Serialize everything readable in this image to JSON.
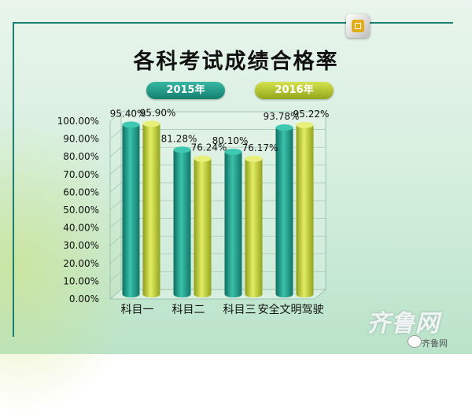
{
  "chart_data": {
    "type": "bar",
    "title": "各科考试成绩合格率",
    "categories": [
      "科目一",
      "科目二",
      "科目三",
      "安全文明驾驶"
    ],
    "series": [
      {
        "name": "2015年",
        "values": [
          95.4,
          81.28,
          80.1,
          93.78
        ],
        "labels": [
          "95.40%",
          "81.28%",
          "80.10%",
          "93.78%"
        ]
      },
      {
        "name": "2016年",
        "values": [
          95.9,
          76.24,
          76.17,
          95.22
        ],
        "labels": [
          "95.90%",
          "76.24%",
          "76.17%",
          "95.22%"
        ]
      }
    ],
    "yticks": [
      "0.00%",
      "10.00%",
      "20.00%",
      "30.00%",
      "40.00%",
      "50.00%",
      "60.00%",
      "70.00%",
      "80.00%",
      "90.00%",
      "100.00%"
    ],
    "ylim": [
      0,
      100
    ],
    "grid": true,
    "legend": "top"
  },
  "colors": {
    "series_2015": "#1f9a87",
    "series_2016": "#b9c93a"
  },
  "watermark": {
    "brand": "齐鲁网",
    "small_text": "齐鲁网"
  },
  "icons": {
    "corner_badge": "square-badge-icon",
    "wechat": "wechat-icon"
  }
}
